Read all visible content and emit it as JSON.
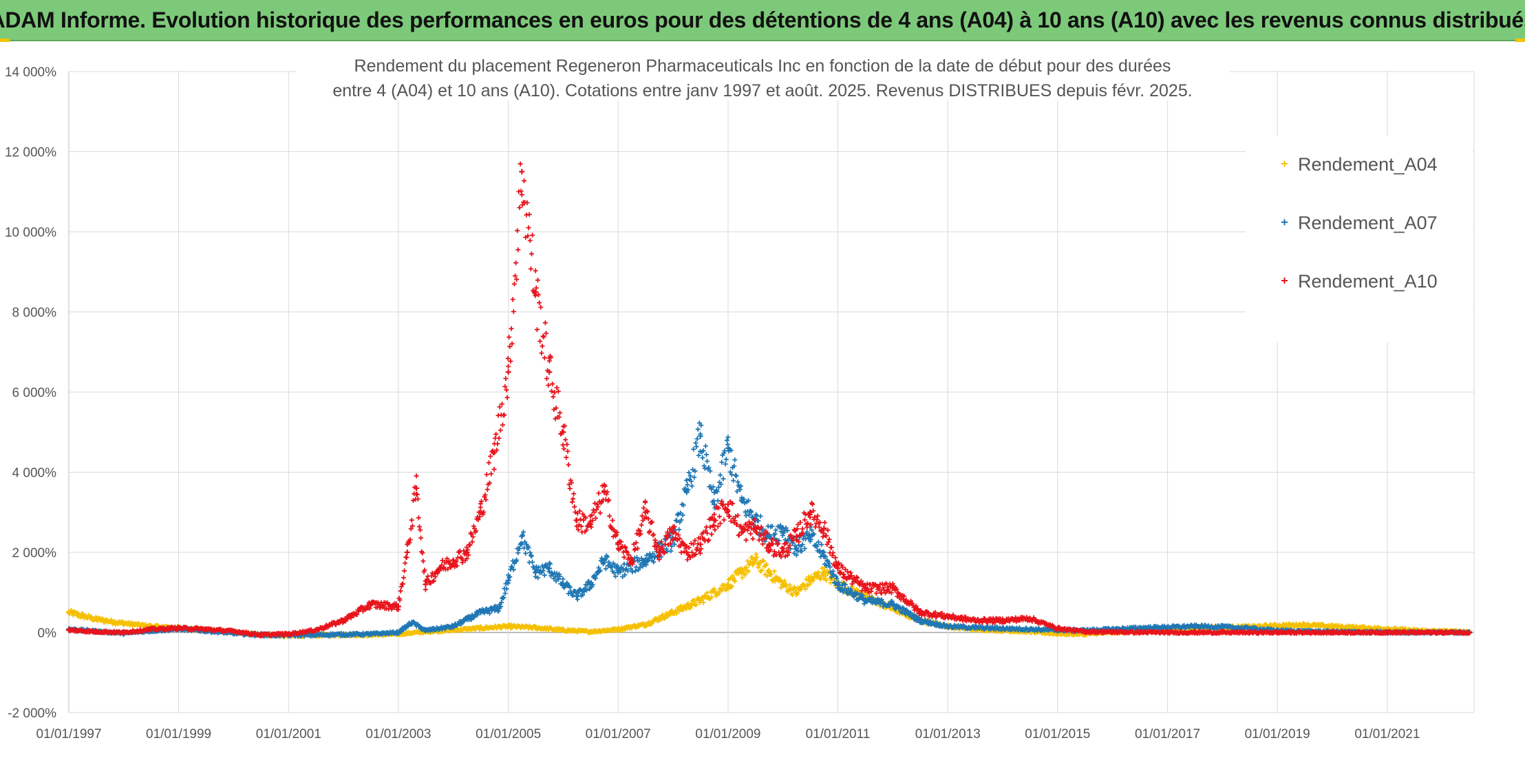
{
  "banner": {
    "title": "ADAM Informe. Evolution historique des performances en euros pour des détentions de 4 ans (A04) à 10 ans (A10) avec les revenus connus distribués"
  },
  "colors": {
    "banner_bg": "#7dc97a",
    "A04": "#f5c000",
    "A07": "#1f77b4",
    "A10": "#e8141c",
    "grid": "#d9d9d9"
  },
  "chart_data": {
    "type": "scatter",
    "title_lines": [
      "Rendement du placement Regeneron Pharmaceuticals Inc en fonction de la date de début pour des durées",
      "entre 4 (A04) et 10 ans (A10). Cotations entre janv 1997 et août. 2025. Revenus DISTRIBUES depuis févr. 2025."
    ],
    "x_axis": {
      "type": "date",
      "range": [
        "1997-01-01",
        "2022-08-01"
      ],
      "tick_labels": [
        "01/01/1997",
        "01/01/1999",
        "01/01/2001",
        "01/01/2003",
        "01/01/2005",
        "01/01/2007",
        "01/01/2009",
        "01/01/2011",
        "01/01/2013",
        "01/01/2015",
        "01/01/2017",
        "01/01/2019",
        "01/01/2021"
      ]
    },
    "y_axis": {
      "range": [
        -2000,
        14000
      ],
      "unit": "%",
      "ticks": [
        -2000,
        0,
        2000,
        4000,
        6000,
        8000,
        10000,
        12000,
        14000
      ],
      "tick_labels": [
        "-2 000%",
        "0%",
        "2 000%",
        "4 000%",
        "6 000%",
        "8 000%",
        "10 000%",
        "12 000%",
        "14 000%"
      ]
    },
    "grid": true,
    "legend": {
      "position": "top-right"
    },
    "series": [
      {
        "name": "Rendement_A04",
        "color": "#f5c000",
        "marker": "+",
        "points": [
          [
            "1997-01-01",
            500
          ],
          [
            "1997-07-01",
            330
          ],
          [
            "1998-01-01",
            230
          ],
          [
            "1998-07-01",
            150
          ],
          [
            "1999-01-01",
            110
          ],
          [
            "1999-07-01",
            60
          ],
          [
            "2000-01-01",
            0
          ],
          [
            "2000-07-01",
            -60
          ],
          [
            "2001-01-01",
            -80
          ],
          [
            "2001-07-01",
            -70
          ],
          [
            "2002-01-01",
            -60
          ],
          [
            "2002-07-01",
            -60
          ],
          [
            "2003-01-01",
            -40
          ],
          [
            "2003-07-01",
            20
          ],
          [
            "2004-01-01",
            60
          ],
          [
            "2004-07-01",
            110
          ],
          [
            "2005-01-01",
            150
          ],
          [
            "2005-07-01",
            120
          ],
          [
            "2006-01-01",
            60
          ],
          [
            "2006-07-01",
            20
          ],
          [
            "2007-01-01",
            80
          ],
          [
            "2007-07-01",
            200
          ],
          [
            "2008-01-01",
            500
          ],
          [
            "2008-07-01",
            800
          ],
          [
            "2009-01-01",
            1200
          ],
          [
            "2009-04-01",
            1500
          ],
          [
            "2009-07-01",
            1800
          ],
          [
            "2009-10-01",
            1500
          ],
          [
            "2010-01-01",
            1200
          ],
          [
            "2010-04-01",
            1000
          ],
          [
            "2010-07-01",
            1300
          ],
          [
            "2010-10-01",
            1500
          ],
          [
            "2011-01-01",
            1200
          ],
          [
            "2011-07-01",
            900
          ],
          [
            "2012-01-01",
            600
          ],
          [
            "2012-07-01",
            300
          ],
          [
            "2013-01-01",
            150
          ],
          [
            "2013-07-01",
            80
          ],
          [
            "2014-01-01",
            50
          ],
          [
            "2014-07-01",
            20
          ],
          [
            "2015-01-01",
            -30
          ],
          [
            "2015-07-01",
            -40
          ],
          [
            "2016-01-01",
            0
          ],
          [
            "2016-07-01",
            50
          ],
          [
            "2017-01-01",
            80
          ],
          [
            "2017-07-01",
            120
          ],
          [
            "2018-01-01",
            130
          ],
          [
            "2018-07-01",
            140
          ],
          [
            "2019-01-01",
            170
          ],
          [
            "2019-07-01",
            190
          ],
          [
            "2020-01-01",
            150
          ],
          [
            "2020-07-01",
            120
          ],
          [
            "2021-01-01",
            90
          ],
          [
            "2021-07-01",
            50
          ],
          [
            "2022-01-01",
            30
          ],
          [
            "2022-07-01",
            20
          ]
        ]
      },
      {
        "name": "Rendement_A07",
        "color": "#1f77b4",
        "marker": "+",
        "points": [
          [
            "1997-01-01",
            80
          ],
          [
            "1997-07-01",
            30
          ],
          [
            "1998-01-01",
            -20
          ],
          [
            "1998-07-01",
            40
          ],
          [
            "1999-01-01",
            90
          ],
          [
            "1999-07-01",
            40
          ],
          [
            "2000-01-01",
            -20
          ],
          [
            "2000-07-01",
            -60
          ],
          [
            "2001-01-01",
            -70
          ],
          [
            "2001-07-01",
            -60
          ],
          [
            "2002-01-01",
            -50
          ],
          [
            "2002-07-01",
            -40
          ],
          [
            "2003-01-01",
            0
          ],
          [
            "2003-04-01",
            250
          ],
          [
            "2003-07-01",
            50
          ],
          [
            "2004-01-01",
            150
          ],
          [
            "2004-07-01",
            500
          ],
          [
            "2004-11-01",
            600
          ],
          [
            "2005-01-01",
            1300
          ],
          [
            "2005-04-01",
            2400
          ],
          [
            "2005-07-01",
            1500
          ],
          [
            "2005-10-01",
            1600
          ],
          [
            "2006-01-01",
            1200
          ],
          [
            "2006-04-01",
            900
          ],
          [
            "2006-07-01",
            1200
          ],
          [
            "2006-10-01",
            1800
          ],
          [
            "2007-01-01",
            1500
          ],
          [
            "2007-07-01",
            1800
          ],
          [
            "2008-01-01",
            2300
          ],
          [
            "2008-04-01",
            3500
          ],
          [
            "2008-07-01",
            4900
          ],
          [
            "2008-10-01",
            3200
          ],
          [
            "2009-01-01",
            4600
          ],
          [
            "2009-04-01",
            3300
          ],
          [
            "2009-07-01",
            2800
          ],
          [
            "2009-10-01",
            2400
          ],
          [
            "2010-01-01",
            2600
          ],
          [
            "2010-04-01",
            2100
          ],
          [
            "2010-07-01",
            2400
          ],
          [
            "2010-10-01",
            1900
          ],
          [
            "2011-01-01",
            1200
          ],
          [
            "2011-07-01",
            800
          ],
          [
            "2012-01-01",
            700
          ],
          [
            "2012-07-01",
            300
          ],
          [
            "2013-01-01",
            150
          ],
          [
            "2013-07-01",
            120
          ],
          [
            "2014-01-01",
            100
          ],
          [
            "2014-07-01",
            80
          ],
          [
            "2015-01-01",
            60
          ],
          [
            "2015-07-01",
            50
          ],
          [
            "2016-01-01",
            80
          ],
          [
            "2016-07-01",
            110
          ],
          [
            "2017-01-01",
            130
          ],
          [
            "2017-07-01",
            150
          ],
          [
            "2018-01-01",
            140
          ],
          [
            "2018-07-01",
            100
          ],
          [
            "2019-01-01",
            50
          ],
          [
            "2019-07-01",
            30
          ],
          [
            "2020-01-01",
            20
          ],
          [
            "2020-07-01",
            10
          ],
          [
            "2021-01-01",
            5
          ],
          [
            "2021-07-01",
            0
          ],
          [
            "2022-01-01",
            0
          ],
          [
            "2022-07-01",
            0
          ]
        ]
      },
      {
        "name": "Rendement_A10",
        "color": "#e8141c",
        "marker": "+",
        "points": [
          [
            "1997-01-01",
            60
          ],
          [
            "1997-07-01",
            20
          ],
          [
            "1998-01-01",
            0
          ],
          [
            "1998-07-01",
            80
          ],
          [
            "1999-01-01",
            110
          ],
          [
            "1999-07-01",
            80
          ],
          [
            "2000-01-01",
            30
          ],
          [
            "2000-07-01",
            -60
          ],
          [
            "2001-01-01",
            -40
          ],
          [
            "2001-07-01",
            60
          ],
          [
            "2002-01-01",
            300
          ],
          [
            "2002-07-01",
            700
          ],
          [
            "2003-01-01",
            650
          ],
          [
            "2003-03-01",
            2000
          ],
          [
            "2003-05-01",
            3600
          ],
          [
            "2003-07-01",
            1200
          ],
          [
            "2003-10-01",
            1600
          ],
          [
            "2004-01-01",
            1800
          ],
          [
            "2004-04-01",
            2000
          ],
          [
            "2004-07-01",
            3000
          ],
          [
            "2004-10-01",
            4500
          ],
          [
            "2005-01-01",
            6500
          ],
          [
            "2005-04-01",
            11500
          ],
          [
            "2005-07-01",
            8500
          ],
          [
            "2005-10-01",
            6500
          ],
          [
            "2006-01-01",
            5000
          ],
          [
            "2006-04-01",
            2800
          ],
          [
            "2006-07-01",
            2700
          ],
          [
            "2006-10-01",
            3500
          ],
          [
            "2007-01-01",
            2200
          ],
          [
            "2007-04-01",
            1800
          ],
          [
            "2007-07-01",
            3000
          ],
          [
            "2007-10-01",
            2000
          ],
          [
            "2008-01-01",
            2500
          ],
          [
            "2008-04-01",
            2000
          ],
          [
            "2008-07-01",
            2200
          ],
          [
            "2008-10-01",
            2800
          ],
          [
            "2009-01-01",
            3200
          ],
          [
            "2009-04-01",
            2500
          ],
          [
            "2009-07-01",
            2600
          ],
          [
            "2009-10-01",
            2200
          ],
          [
            "2010-01-01",
            2000
          ],
          [
            "2010-04-01",
            2400
          ],
          [
            "2010-07-01",
            3000
          ],
          [
            "2010-10-01",
            2600
          ],
          [
            "2011-01-01",
            1600
          ],
          [
            "2011-07-01",
            1100
          ],
          [
            "2012-01-01",
            1100
          ],
          [
            "2012-07-01",
            500
          ],
          [
            "2013-01-01",
            400
          ],
          [
            "2013-07-01",
            300
          ],
          [
            "2014-01-01",
            300
          ],
          [
            "2014-07-01",
            350
          ],
          [
            "2015-01-01",
            100
          ],
          [
            "2015-07-01",
            20
          ],
          [
            "2016-01-01",
            10
          ],
          [
            "2016-07-01",
            5
          ],
          [
            "2017-01-01",
            0
          ],
          [
            "2017-07-01",
            0
          ],
          [
            "2018-01-01",
            0
          ],
          [
            "2018-07-01",
            0
          ],
          [
            "2019-01-01",
            0
          ],
          [
            "2019-07-01",
            0
          ],
          [
            "2020-01-01",
            0
          ],
          [
            "2020-07-01",
            0
          ],
          [
            "2021-01-01",
            0
          ],
          [
            "2021-07-01",
            0
          ],
          [
            "2022-01-01",
            0
          ],
          [
            "2022-07-01",
            0
          ]
        ]
      }
    ]
  }
}
